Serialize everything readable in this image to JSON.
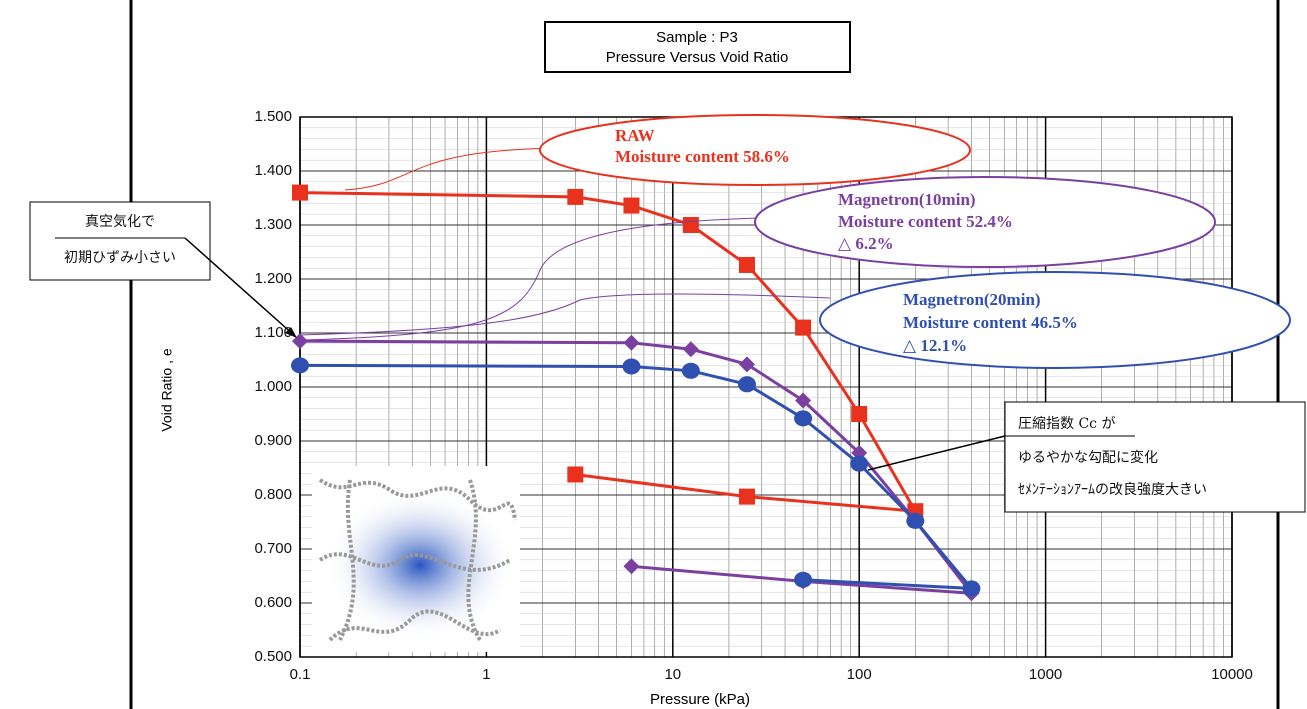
{
  "chart_data": {
    "type": "line",
    "title": [
      "Sample : P3",
      "Pressure Versus Void Ratio"
    ],
    "x_label": "Pressure (kPa)",
    "y_label": "Void Ratio , e",
    "x_log": true,
    "grid": true,
    "xlim": [
      0.1,
      10000
    ],
    "xticks": [
      0.1,
      1,
      10,
      100,
      1000,
      10000
    ],
    "ylim": [
      0.5,
      1.5
    ],
    "yticks": [
      {
        "value": 0.5,
        "label": "0.500"
      },
      {
        "value": 0.6,
        "label": "0.600"
      },
      {
        "value": 0.7,
        "label": "0.700"
      },
      {
        "value": 0.8,
        "label": "0.800"
      },
      {
        "value": 0.9,
        "label": "0.900"
      },
      {
        "value": 1.0,
        "label": "1.000"
      },
      {
        "value": 1.1,
        "label": "1.100"
      },
      {
        "value": 1.2,
        "label": "1.200"
      },
      {
        "value": 1.3,
        "label": "1.300"
      },
      {
        "value": 1.4,
        "label": "1.400"
      },
      {
        "value": 1.5,
        "label": "1.500"
      }
    ],
    "series": [
      {
        "color": "#e8321e",
        "marker": "square",
        "x": [
          0.1,
          3,
          6,
          12.5,
          25,
          50,
          100,
          200,
          25,
          3
        ],
        "values": [
          1.36,
          1.352,
          1.336,
          1.3,
          1.226,
          1.11,
          0.95,
          0.77,
          0.797,
          0.838
        ]
      },
      {
        "color": "#7b3fa0",
        "marker": "diamond",
        "x": [
          0.1,
          6,
          12.5,
          25,
          50,
          100,
          200,
          400,
          50,
          6
        ],
        "values": [
          1.085,
          1.082,
          1.07,
          1.042,
          0.975,
          0.878,
          0.752,
          0.618,
          0.64,
          0.668
        ]
      },
      {
        "color": "#3050b0",
        "marker": "circle",
        "x": [
          0.1,
          6,
          12.5,
          25,
          50,
          100,
          200,
          400,
          50
        ],
        "values": [
          1.04,
          1.038,
          1.03,
          1.005,
          0.942,
          0.858,
          0.752,
          0.627,
          0.643
        ]
      }
    ],
    "annotations": {
      "raw": [
        "RAW",
        "Moisture content 58.6%"
      ],
      "m10": [
        "Magnetron(10min)",
        "Moisture content 52.4%",
        "△ 6.2%"
      ],
      "m20": [
        "Magnetron(20min)",
        "Moisture content 46.5%",
        "△ 12.1%"
      ],
      "left_note": [
        "真空気化で",
        "初期ひずみ小さい"
      ],
      "right_note": [
        "圧縮指数 Cc が",
        "ゆるやかな勾配に変化",
        "ｾﾒﾝﾃｰｼｮﾝｱｰﾑの改良強度大きい"
      ]
    }
  }
}
